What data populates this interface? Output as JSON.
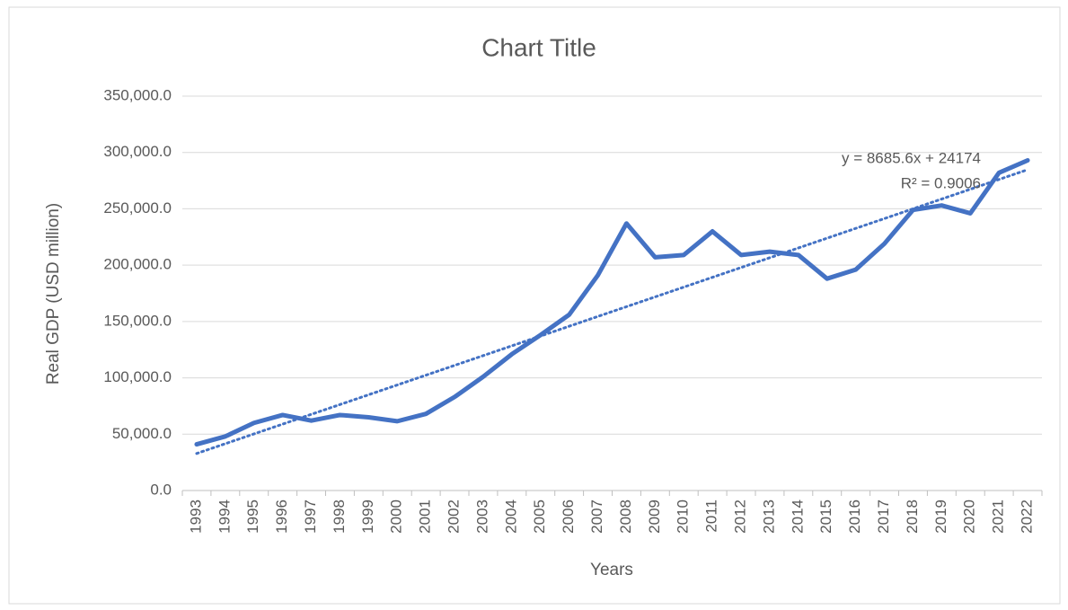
{
  "chart_data": {
    "type": "line",
    "title": "Chart Title",
    "x_label": "Years",
    "y_label": "Real GDP (USD million)",
    "categories": [
      "1993",
      "1994",
      "1995",
      "1996",
      "1997",
      "1998",
      "1999",
      "2000",
      "2001",
      "2002",
      "2003",
      "2004",
      "2005",
      "2006",
      "2007",
      "2008",
      "2009",
      "2010",
      "2011",
      "2012",
      "2013",
      "2014",
      "2015",
      "2016",
      "2017",
      "2018",
      "2019",
      "2020",
      "2021",
      "2022"
    ],
    "values": [
      41000,
      48000,
      60000,
      67000,
      62000,
      67000,
      65000,
      61500,
      68000,
      83000,
      101000,
      121000,
      138000,
      156000,
      191000,
      237000,
      207000,
      209000,
      230000,
      209000,
      212000,
      209000,
      188000,
      196000,
      219000,
      249000,
      253000,
      246000,
      282000,
      293000
    ],
    "color": "#4472c4",
    "ylim": [
      0,
      350000
    ],
    "yticks": [
      {
        "value": 0,
        "label": "0.0"
      },
      {
        "value": 50000,
        "label": "50,000.0"
      },
      {
        "value": 100000,
        "label": "100,000.0"
      },
      {
        "value": 150000,
        "label": "150,000.0"
      },
      {
        "value": 200000,
        "label": "200,000.0"
      },
      {
        "value": 250000,
        "label": "250,000.0"
      },
      {
        "value": 300000,
        "label": "300,000.0"
      },
      {
        "value": 350000,
        "label": "350,000.0"
      }
    ],
    "grid": true,
    "trendline": {
      "slope": 8685.6,
      "intercept": 24174,
      "equation": "y = 8685.6x + 24174",
      "r_squared": "R² = 0.9006"
    }
  }
}
